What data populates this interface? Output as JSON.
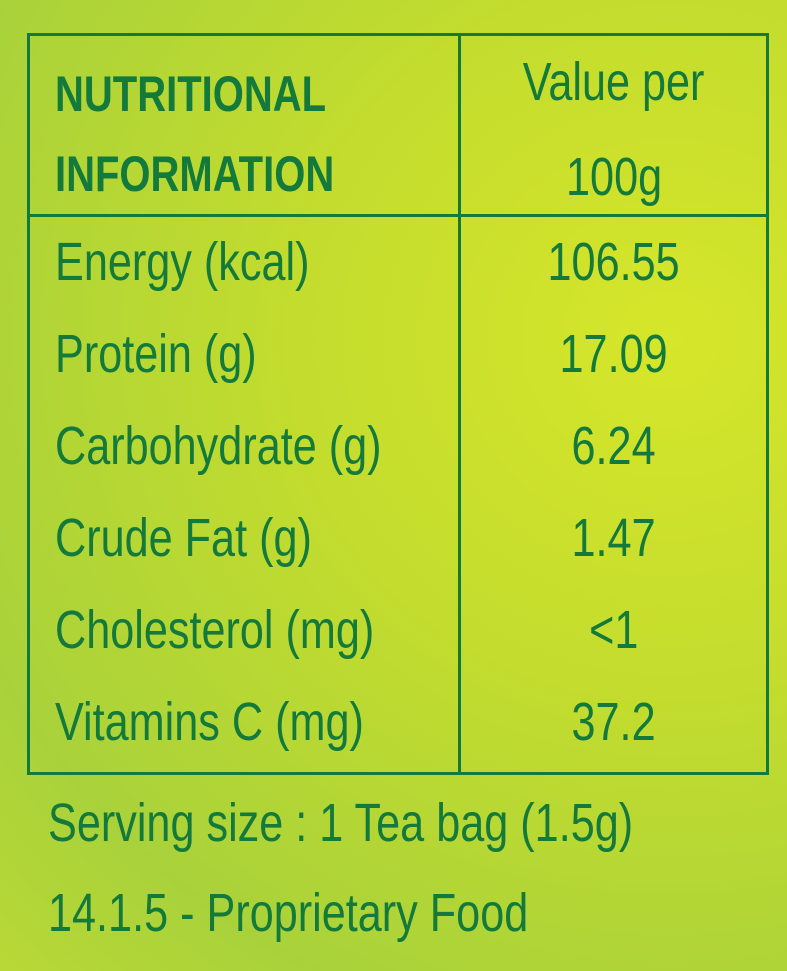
{
  "header": {
    "label_lines": [
      "NUTRITIONAL",
      "INFORMATION"
    ],
    "value_lines": [
      "Value per",
      "100g"
    ]
  },
  "table": {
    "rows": [
      [
        "Energy (kcal)",
        "106.55"
      ],
      [
        "Protein (g)",
        "17.09"
      ],
      [
        "Carbohydrate (g)",
        "6.24"
      ],
      [
        "Crude Fat (g)",
        "1.47"
      ],
      [
        "Cholesterol (mg)",
        "<1"
      ],
      [
        "Vitamins C (mg)",
        "37.2"
      ]
    ]
  },
  "serving_size": "Serving size : 1 Tea bag (1.5g)",
  "category": "14.1.5 - Proprietary Food"
}
